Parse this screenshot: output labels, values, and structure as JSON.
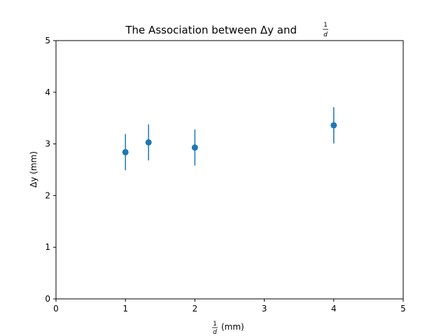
{
  "chart_data": {
    "type": "scatter",
    "title": "The Association between Δy and",
    "title_fraction": {
      "numerator": "1",
      "denominator": "d"
    },
    "xlabel": "(mm)",
    "xlabel_fraction": {
      "numerator": "1",
      "denominator": "d"
    },
    "ylabel": "Δy (mm)",
    "xlim": [
      0,
      5
    ],
    "ylim": [
      0,
      5
    ],
    "x_ticks": [
      "0",
      "1",
      "2",
      "3",
      "4",
      "5"
    ],
    "y_ticks": [
      "0",
      "1",
      "2",
      "3",
      "4",
      "5"
    ],
    "grid": false,
    "color": "#1f77b4",
    "points": [
      {
        "x": 1.0,
        "y": 2.84,
        "yerr": 0.35
      },
      {
        "x": 1.333,
        "y": 3.03,
        "yerr": 0.35
      },
      {
        "x": 2.0,
        "y": 2.93,
        "yerr": 0.35
      },
      {
        "x": 4.0,
        "y": 3.36,
        "yerr": 0.35
      }
    ]
  }
}
